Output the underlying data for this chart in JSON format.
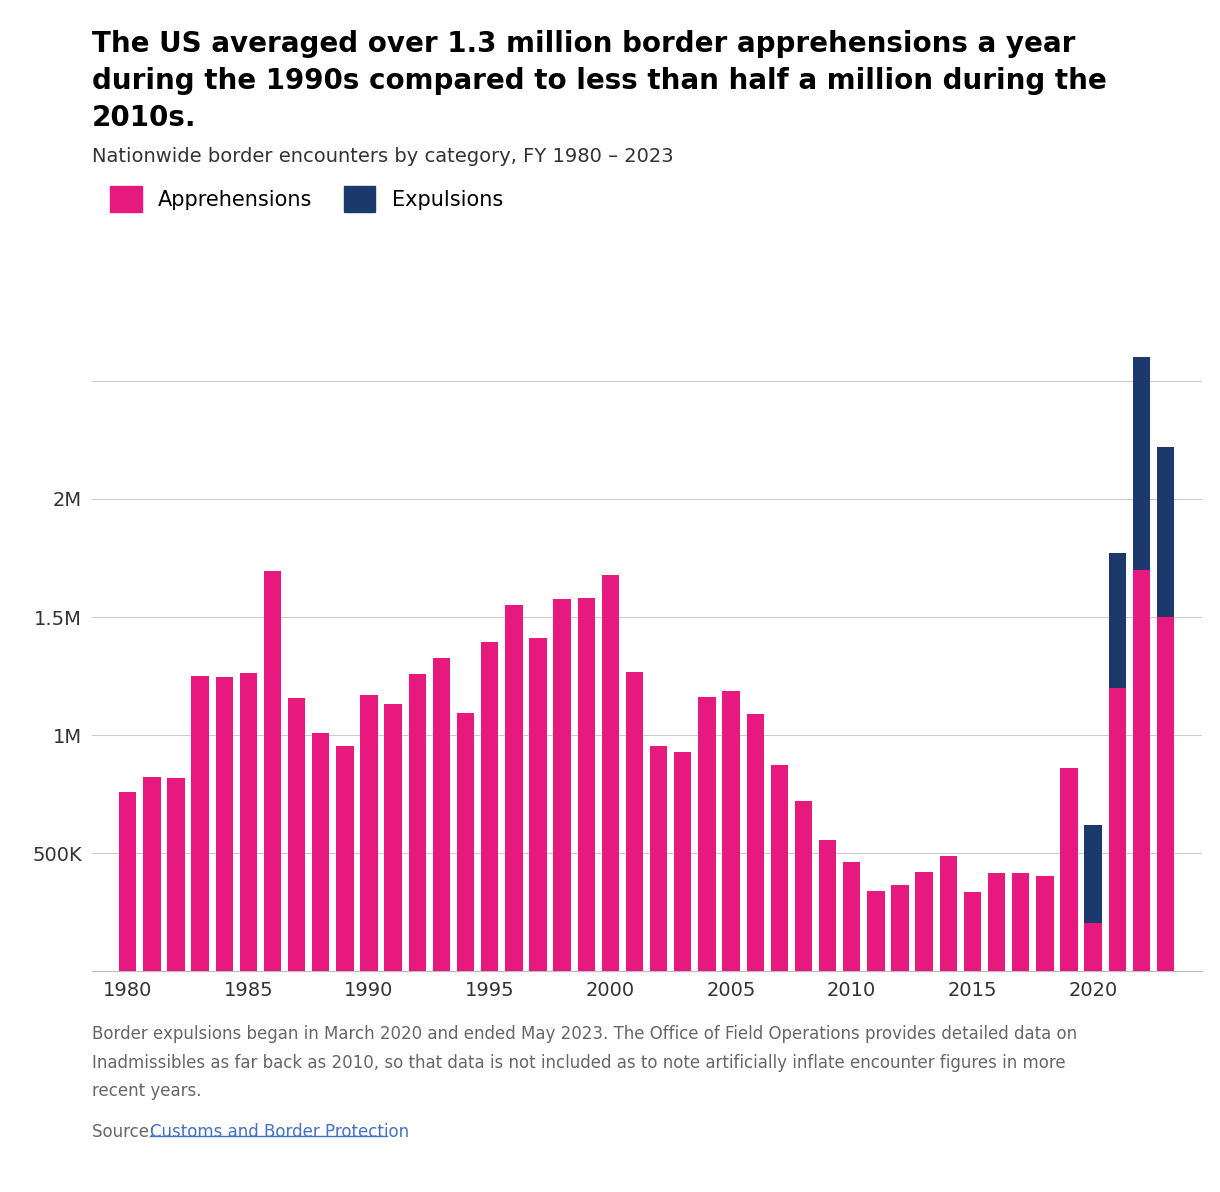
{
  "title_lines": [
    "The US averaged over 1.3 million border apprehensions a year",
    "during the 1990s compared to less than half a million during the",
    "2010s."
  ],
  "subtitle": "Nationwide border encounters by category, FY 1980 – 2023",
  "years": [
    1980,
    1981,
    1982,
    1983,
    1984,
    1985,
    1986,
    1987,
    1988,
    1989,
    1990,
    1991,
    1992,
    1993,
    1994,
    1995,
    1996,
    1997,
    1998,
    1999,
    2000,
    2001,
    2002,
    2003,
    2004,
    2005,
    2006,
    2007,
    2008,
    2009,
    2010,
    2011,
    2012,
    2013,
    2014,
    2015,
    2016,
    2017,
    2018,
    2019,
    2020,
    2021,
    2022,
    2023
  ],
  "apprehensions": [
    760000,
    823000,
    820000,
    1252000,
    1246000,
    1263000,
    1694000,
    1158000,
    1008000,
    954000,
    1169000,
    1132000,
    1258000,
    1327000,
    1094000,
    1394000,
    1550000,
    1412000,
    1575000,
    1579000,
    1676000,
    1266000,
    955000,
    931000,
    1160000,
    1189000,
    1089000,
    876000,
    723000,
    556000,
    463000,
    340000,
    364000,
    420000,
    487000,
    337000,
    415000,
    415000,
    404000,
    860000,
    206000,
    1200000,
    1700000,
    1500000
  ],
  "expulsions": [
    0,
    0,
    0,
    0,
    0,
    0,
    0,
    0,
    0,
    0,
    0,
    0,
    0,
    0,
    0,
    0,
    0,
    0,
    0,
    0,
    0,
    0,
    0,
    0,
    0,
    0,
    0,
    0,
    0,
    0,
    0,
    0,
    0,
    0,
    0,
    0,
    0,
    0,
    0,
    0,
    415000,
    570000,
    900000,
    720000
  ],
  "apprehension_color": "#E8197E",
  "expulsion_color": "#1B3A6B",
  "bg_color": "#FFFFFF",
  "legend_labels": [
    "Apprehensions",
    "Expulsions"
  ],
  "yticks": [
    0,
    500000,
    1000000,
    1500000,
    2000000,
    2500000
  ],
  "ytick_labels": [
    "",
    "500K",
    "1M",
    "1.5M",
    "2M",
    ""
  ],
  "xticks": [
    1980,
    1985,
    1990,
    1995,
    2000,
    2005,
    2010,
    2015,
    2020
  ],
  "ylim": [
    0,
    2800000
  ],
  "xlim_left": 1978.5,
  "xlim_right": 2024.5,
  "bar_width": 0.72,
  "footnote_lines": [
    "Border expulsions began in March 2020 and ended May 2023. The Office of Field Operations provides detailed data on",
    "Inadmissibles as far back as 2010, so that data is not included as to note artificially inflate encounter figures in more",
    "recent years."
  ],
  "source_prefix": "Source: ",
  "source_link_text": "Customs and Border Protection",
  "source_link_color": "#4472C4",
  "note_color": "#666666",
  "title_fontsize": 20,
  "subtitle_fontsize": 14,
  "tick_fontsize": 14,
  "legend_fontsize": 15,
  "note_fontsize": 12
}
